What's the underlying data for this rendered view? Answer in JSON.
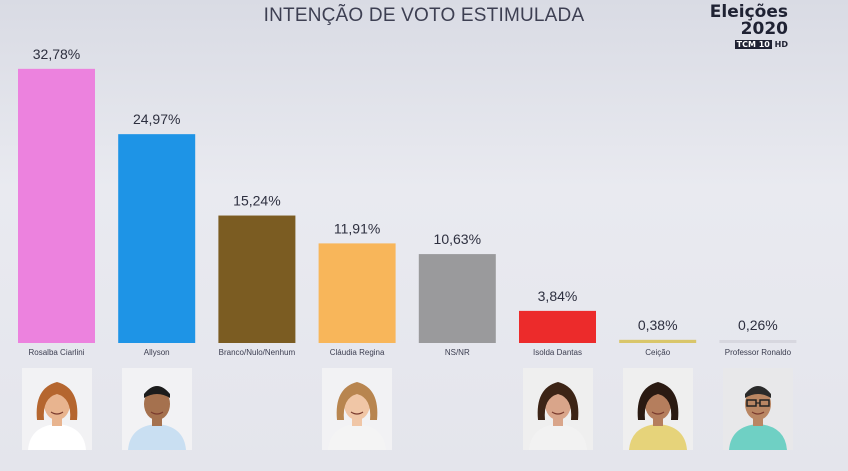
{
  "title": "INTENÇÃO DE VOTO ESTIMULADA",
  "brand": {
    "line1": "Eleições",
    "line2": "2020",
    "channel": "TCM 10",
    "hd": "HD"
  },
  "chart_data": {
    "type": "bar",
    "title": "INTENÇÃO DE VOTO ESTIMULADA",
    "categories": [
      "Rosalba Ciarlini",
      "Allyson",
      "Branco/Nulo/Nenhum",
      "Cláudia Regina",
      "NS/NR",
      "Isolda Dantas",
      "Ceição",
      "Professor Ronaldo"
    ],
    "values": [
      32.78,
      24.97,
      15.24,
      11.91,
      10.63,
      3.84,
      0.38,
      0.26
    ],
    "labels": [
      "32,78%",
      "24,97%",
      "15,24%",
      "11,91%",
      "10,63%",
      "3,84%",
      "0,38%",
      "0,26%"
    ],
    "colors": [
      "#ec82de",
      "#1e94e6",
      "#7b5c22",
      "#f8b65a",
      "#9a9a9c",
      "#ec2b2b",
      "#d9c66a",
      "#d7d7df"
    ],
    "ylim": [
      0,
      33
    ],
    "grid": false,
    "legend": "none"
  },
  "photos": [
    {
      "bar": 0,
      "icon": "woman-photo",
      "bg": "#f2f2f4",
      "hair": "#b5662f",
      "skin": "#e8b48f",
      "shirt": "#ffffff"
    },
    {
      "bar": 1,
      "icon": "man-photo",
      "bg": "#f2f2f4",
      "hair": "#1c1c1c",
      "skin": "#a5714e",
      "shirt": "#c9dff2"
    },
    {
      "bar": 3,
      "icon": "woman-photo",
      "bg": "#f2f2f4",
      "hair": "#b8854f",
      "skin": "#f0c6a6",
      "shirt": "#f4f4f4"
    },
    {
      "bar": 5,
      "icon": "woman-photo",
      "bg": "#efefef",
      "hair": "#3c2416",
      "skin": "#d9a58a",
      "shirt": "#f2f2f2"
    },
    {
      "bar": 6,
      "icon": "woman-photo",
      "bg": "#efefef",
      "hair": "#2a1a12",
      "skin": "#b57e5d",
      "shirt": "#e6d37a"
    },
    {
      "bar": 7,
      "icon": "man-glasses-photo",
      "bg": "#e8e8ea",
      "hair": "#2a2a2a",
      "skin": "#b98663",
      "shirt": "#6fd0c4"
    }
  ]
}
